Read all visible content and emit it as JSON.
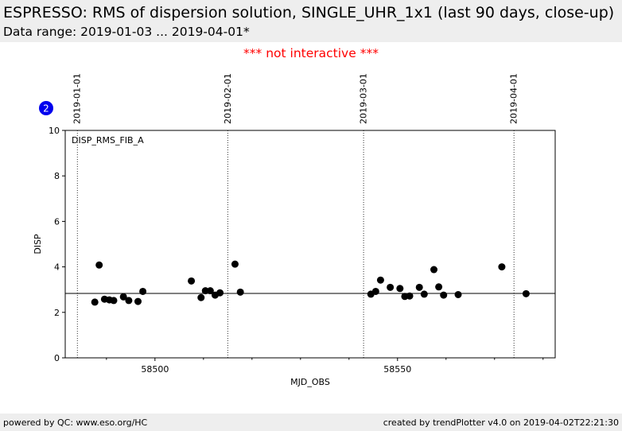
{
  "header": {
    "title": "ESPRESSO: RMS of dispersion solution, SINGLE_UHR_1x1 (last 90 days, close-up)",
    "subtitle": "Data range: 2019-01-03 ... 2019-04-01*"
  },
  "notice": "*** not interactive ***",
  "badge": "2",
  "footer": {
    "left": "powered by QC: www.eso.org/HC",
    "right": "created by trendPlotter v4.0 on 2019-04-02T22:21:30"
  },
  "colors": {
    "points": "#000000",
    "badge": "#0000ee",
    "notice": "#ff0000",
    "bars": "#eeeeee"
  },
  "chart_data": {
    "type": "scatter",
    "xlabel": "MJD_OBS",
    "ylabel": "DISP",
    "panel_label": "DISP_RMS_FIB_A",
    "xlim": [
      58481.5,
      58582.5
    ],
    "ylim": [
      0,
      10
    ],
    "x_ticks": [
      58500,
      58550
    ],
    "y_ticks": [
      0,
      2,
      4,
      6,
      8,
      10
    ],
    "reference_line": 2.83,
    "date_markers": [
      {
        "label": "2019-01-01",
        "x": 58484
      },
      {
        "label": "2019-02-01",
        "x": 58515
      },
      {
        "label": "2019-03-01",
        "x": 58543
      },
      {
        "label": "2019-04-01",
        "x": 58574
      }
    ],
    "points": [
      {
        "x": 58487.6,
        "y": 2.45
      },
      {
        "x": 58488.5,
        "y": 4.08
      },
      {
        "x": 58489.6,
        "y": 2.58
      },
      {
        "x": 58490.6,
        "y": 2.55
      },
      {
        "x": 58491.5,
        "y": 2.52
      },
      {
        "x": 58493.5,
        "y": 2.68
      },
      {
        "x": 58494.6,
        "y": 2.52
      },
      {
        "x": 58496.5,
        "y": 2.48
      },
      {
        "x": 58497.5,
        "y": 2.92
      },
      {
        "x": 58507.5,
        "y": 3.38
      },
      {
        "x": 58509.5,
        "y": 2.65
      },
      {
        "x": 58510.4,
        "y": 2.95
      },
      {
        "x": 58511.4,
        "y": 2.95
      },
      {
        "x": 58512.4,
        "y": 2.76
      },
      {
        "x": 58513.4,
        "y": 2.86
      },
      {
        "x": 58516.5,
        "y": 4.12
      },
      {
        "x": 58517.6,
        "y": 2.89
      },
      {
        "x": 58544.5,
        "y": 2.8
      },
      {
        "x": 58545.5,
        "y": 2.92
      },
      {
        "x": 58546.5,
        "y": 3.42
      },
      {
        "x": 58548.5,
        "y": 3.1
      },
      {
        "x": 58550.5,
        "y": 3.05
      },
      {
        "x": 58551.5,
        "y": 2.7
      },
      {
        "x": 58552.5,
        "y": 2.72
      },
      {
        "x": 58554.5,
        "y": 3.1
      },
      {
        "x": 58555.5,
        "y": 2.8
      },
      {
        "x": 58557.5,
        "y": 3.88
      },
      {
        "x": 58558.5,
        "y": 3.12
      },
      {
        "x": 58559.5,
        "y": 2.76
      },
      {
        "x": 58562.5,
        "y": 2.78
      },
      {
        "x": 58571.5,
        "y": 4.0
      },
      {
        "x": 58576.5,
        "y": 2.82
      }
    ]
  }
}
